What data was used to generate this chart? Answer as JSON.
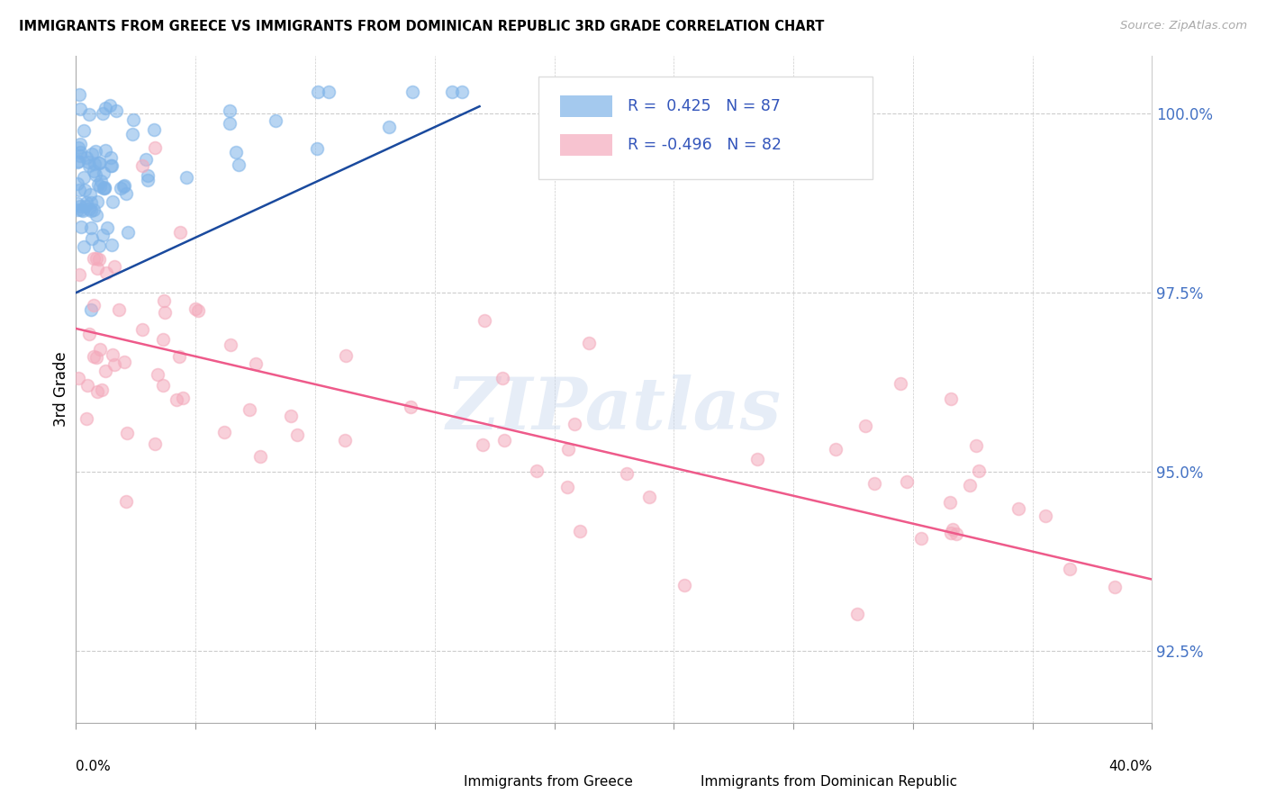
{
  "title": "IMMIGRANTS FROM GREECE VS IMMIGRANTS FROM DOMINICAN REPUBLIC 3RD GRADE CORRELATION CHART",
  "source": "Source: ZipAtlas.com",
  "ylabel": "3rd Grade",
  "xlim": [
    0.0,
    40.0
  ],
  "ylim": [
    91.5,
    100.8
  ],
  "yticks": [
    92.5,
    95.0,
    97.5,
    100.0
  ],
  "ytick_labels": [
    "92.5%",
    "95.0%",
    "97.5%",
    "100.0%"
  ],
  "xtick_positions": [
    0,
    4.44,
    8.89,
    13.33,
    17.78,
    22.22,
    26.67,
    31.11,
    35.56,
    40.0
  ],
  "greece_R": 0.425,
  "greece_N": 87,
  "dr_R": -0.496,
  "dr_N": 82,
  "greece_color": "#7EB3E8",
  "dr_color": "#F4AABC",
  "trendline_greece_color": "#1A4A9E",
  "trendline_dr_color": "#EE5A8A",
  "background_color": "#FFFFFF",
  "watermark": "ZIPatlas",
  "legend_R1": "R =  0.425   N = 87",
  "legend_R2": "R = -0.496   N = 82",
  "legend_color": "#3355BB"
}
